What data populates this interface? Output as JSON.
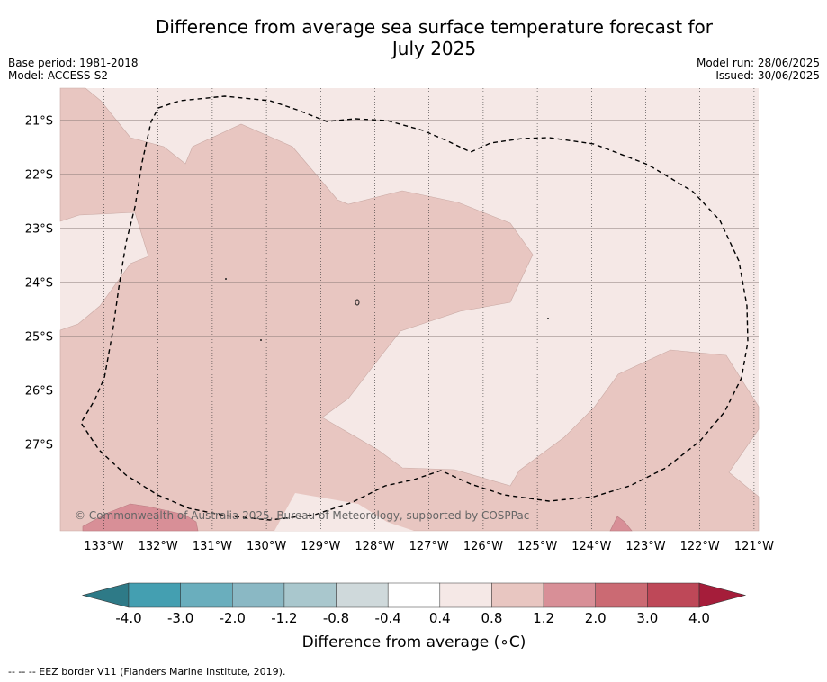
{
  "title_line1": "Difference from average sea surface temperature forecast for",
  "title_line2": "July 2025",
  "base_period": "Base period: 1981-2018",
  "model": "Model: ACCESS-S2",
  "model_run": "Model run: 28/06/2025",
  "issued": "Issued: 30/06/2025",
  "copyright": "© Commonwealth of Australia 2025, Bureau of Meteorology, supported by COSPPac",
  "colorbar": {
    "label": "Difference from average (∘C)",
    "ticks": [
      "-4.0",
      "-3.0",
      "-2.0",
      "-1.2",
      "-0.8",
      "-0.4",
      "0.4",
      "0.8",
      "1.2",
      "2.0",
      "3.0",
      "4.0"
    ],
    "colors": [
      "#2e7a87",
      "#449fb1",
      "#6aaebd",
      "#8ab8c4",
      "#a9c7cd",
      "#cfd9db",
      "#ffffff",
      "#f5e8e6",
      "#e8c6c1",
      "#d88f97",
      "#cb6a73",
      "#be4858",
      "#a51d3a"
    ]
  },
  "map": {
    "lon_labels": [
      "133°W",
      "132°W",
      "131°W",
      "130°W",
      "129°W",
      "128°W",
      "127°W",
      "126°W",
      "125°W",
      "124°W",
      "123°W",
      "122°W",
      "121°W"
    ],
    "lat_labels": [
      "21°S",
      "22°S",
      "23°S",
      "24°S",
      "25°S",
      "26°S",
      "27°S"
    ],
    "fill_colors": {
      "light": "#f5e8e6",
      "medium": "#e8c6c1",
      "strong": "#d88f97"
    }
  },
  "footnote": "-- -- -- EEZ border V11 (Flanders Marine Institute, 2019)."
}
